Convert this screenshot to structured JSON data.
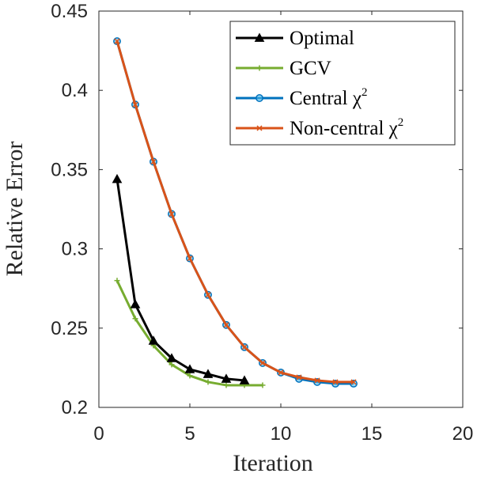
{
  "chart_data": {
    "type": "line",
    "title": "",
    "xlabel": "Iteration",
    "ylabel": "Relative Error",
    "xlim": [
      0,
      20
    ],
    "ylim": [
      0.2,
      0.45
    ],
    "xticks": [
      0,
      5,
      10,
      15,
      20
    ],
    "yticks": [
      0.2,
      0.25,
      0.3,
      0.35,
      0.4,
      0.45
    ],
    "xtick_labels": [
      "0",
      "5",
      "10",
      "15",
      "20"
    ],
    "ytick_labels": [
      "0.2",
      "0.25",
      "0.3",
      "0.35",
      "0.4",
      "0.45"
    ],
    "grid": false,
    "legend_position": "top-right",
    "series": [
      {
        "name": "Optimal",
        "legend_label": "Optimal",
        "legend_sup": "",
        "color": "#000000",
        "marker": "triangle",
        "x": [
          1,
          2,
          3,
          4,
          5,
          6,
          7,
          8
        ],
        "y": [
          0.344,
          0.265,
          0.242,
          0.231,
          0.224,
          0.221,
          0.218,
          0.217
        ]
      },
      {
        "name": "GCV",
        "legend_label": "GCV",
        "legend_sup": "",
        "color": "#77AC30",
        "marker": "plus",
        "x": [
          1,
          2,
          3,
          4,
          5,
          6,
          7,
          8,
          9
        ],
        "y": [
          0.28,
          0.256,
          0.239,
          0.227,
          0.22,
          0.216,
          0.214,
          0.214,
          0.214
        ]
      },
      {
        "name": "Central χ2",
        "legend_label": "Central χ",
        "legend_sup": "2",
        "color": "#0072BD",
        "marker": "circle",
        "x": [
          1,
          2,
          3,
          4,
          5,
          6,
          7,
          8,
          9,
          10,
          11,
          12,
          13,
          14
        ],
        "y": [
          0.431,
          0.391,
          0.355,
          0.322,
          0.294,
          0.271,
          0.252,
          0.238,
          0.228,
          0.222,
          0.218,
          0.216,
          0.215,
          0.215
        ]
      },
      {
        "name": "Non-central χ2",
        "legend_label": "Non-central χ",
        "legend_sup": "2",
        "color": "#D95319",
        "marker": "x",
        "x": [
          1,
          2,
          3,
          4,
          5,
          6,
          7,
          8,
          9,
          10,
          11,
          12,
          13,
          14
        ],
        "y": [
          0.431,
          0.391,
          0.355,
          0.322,
          0.294,
          0.271,
          0.252,
          0.238,
          0.228,
          0.222,
          0.219,
          0.217,
          0.216,
          0.216
        ]
      }
    ]
  }
}
